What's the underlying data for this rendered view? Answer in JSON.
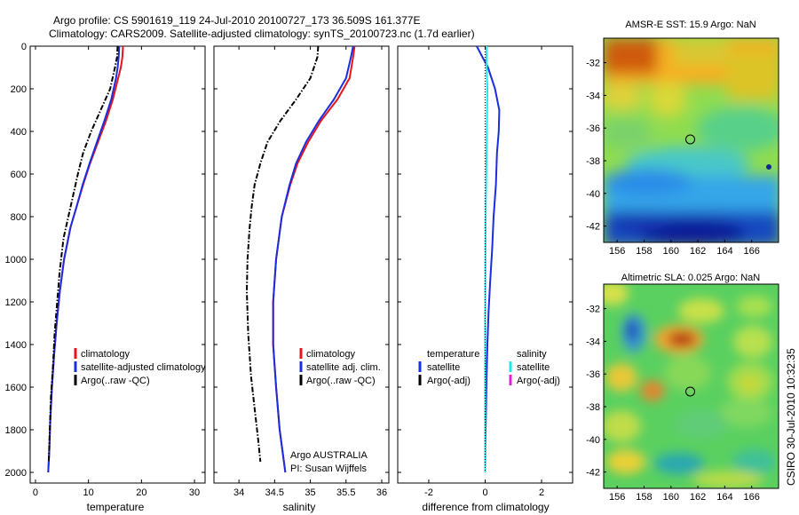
{
  "figure": {
    "title_line1": "Argo profile: CS 5901619_119 24-Jul-2010 20100727_173 36.509S 161.377E",
    "title_line2": "Climatology: CARS2009. Satellite-adjusted climatology: synTS_20100723.nc (1.7d earlier)",
    "credit": "CSIRO 30-Jul-2010 10:32:35",
    "argo_note_line1": "Argo AUSTRALIA",
    "argo_note_line2": "PI: Susan Wijffels"
  },
  "colors": {
    "climatology": "#e8141c",
    "satellite": "#1a2ee0",
    "argo": "#000000",
    "satellite_salinity": "#22e8ee",
    "argo_salinity_adj": "#e020d8"
  },
  "chart_data": [
    {
      "type": "line",
      "title": "",
      "xlabel": "temperature",
      "ylabel": "",
      "xlim": [
        -1,
        32
      ],
      "ylim": [
        2050,
        0
      ],
      "xticks": [
        0,
        10,
        20,
        30
      ],
      "yticks": [
        0,
        200,
        400,
        600,
        800,
        1000,
        1200,
        1400,
        1600,
        1800,
        2000
      ],
      "y_reversed": true,
      "legend": {
        "position": "lower-left",
        "entries": [
          "climatology",
          "satellite-adjusted climatology",
          "Argo(..raw -QC)"
        ]
      },
      "series": [
        {
          "name": "climatology",
          "style": "solid",
          "color": "#e8141c",
          "x": [
            16.5,
            16.4,
            16.1,
            15.6,
            14.6,
            13.3,
            11.8,
            10.3,
            9.0,
            7.8,
            6.6,
            5.4,
            4.6,
            4.0,
            3.5,
            3.1,
            2.8,
            2.6,
            2.4
          ],
          "y": [
            0,
            50,
            100,
            150,
            250,
            350,
            450,
            550,
            650,
            750,
            850,
            1000,
            1150,
            1300,
            1450,
            1600,
            1750,
            1900,
            2000
          ]
        },
        {
          "name": "satellite-adjusted climatology",
          "style": "solid",
          "color": "#1a2ee0",
          "x": [
            15.8,
            15.7,
            15.5,
            15.2,
            14.3,
            13.0,
            11.6,
            10.2,
            8.9,
            7.8,
            6.6,
            5.4,
            4.6,
            4.0,
            3.5,
            3.1,
            2.8,
            2.6,
            2.4
          ],
          "y": [
            0,
            50,
            100,
            150,
            250,
            350,
            450,
            550,
            650,
            750,
            850,
            1000,
            1150,
            1300,
            1450,
            1600,
            1750,
            1900,
            2000
          ]
        },
        {
          "name": "Argo(..raw -QC)",
          "style": "dashdot",
          "color": "#000000",
          "x": [
            15.5,
            15.4,
            15.0,
            14.1,
            12.3,
            10.5,
            9.0,
            8.0,
            7.1,
            6.2,
            5.3,
            4.6,
            4.1,
            3.6,
            3.3,
            2.9,
            2.7,
            2.5
          ],
          "y": [
            0,
            50,
            100,
            200,
            300,
            400,
            500,
            600,
            700,
            800,
            900,
            1050,
            1200,
            1350,
            1500,
            1650,
            1800,
            1950
          ]
        }
      ]
    },
    {
      "type": "line",
      "title": "",
      "xlabel": "salinity",
      "ylabel": "",
      "xlim": [
        33.65,
        36.1
      ],
      "ylim": [
        2050,
        0
      ],
      "xticks": [
        34,
        34.5,
        35,
        35.5,
        36
      ],
      "y_reversed": true,
      "legend": {
        "position": "lower-right",
        "entries": [
          "climatology",
          "satellite adj. clim.",
          "Argo(..raw -QC)"
        ]
      },
      "series": [
        {
          "name": "climatology",
          "style": "solid",
          "color": "#e8141c",
          "x": [
            35.62,
            35.6,
            35.55,
            35.38,
            35.15,
            34.97,
            34.82,
            34.72,
            34.6,
            34.52,
            34.48,
            34.48,
            34.52,
            34.57,
            34.61,
            34.65
          ],
          "y": [
            0,
            50,
            150,
            250,
            350,
            450,
            550,
            650,
            800,
            1000,
            1200,
            1400,
            1600,
            1800,
            1900,
            2000
          ]
        },
        {
          "name": "satellite adj. clim.",
          "style": "solid",
          "color": "#1a2ee0",
          "x": [
            35.6,
            35.57,
            35.5,
            35.33,
            35.12,
            34.94,
            34.8,
            34.71,
            34.6,
            34.52,
            34.48,
            34.48,
            34.52,
            34.57,
            34.61,
            34.65
          ],
          "y": [
            0,
            50,
            150,
            250,
            350,
            450,
            550,
            650,
            800,
            1000,
            1200,
            1400,
            1600,
            1800,
            1900,
            2000
          ]
        },
        {
          "name": "Argo(..raw -QC)",
          "style": "dashdot",
          "color": "#000000",
          "x": [
            35.11,
            35.1,
            35.0,
            34.8,
            34.58,
            34.4,
            34.3,
            34.22,
            34.18,
            34.15,
            34.12,
            34.11,
            34.13,
            34.17,
            34.22,
            34.27,
            34.3
          ],
          "y": [
            0,
            50,
            150,
            250,
            350,
            450,
            550,
            650,
            750,
            850,
            1000,
            1150,
            1350,
            1550,
            1700,
            1850,
            1950
          ]
        }
      ]
    },
    {
      "type": "line",
      "title": "",
      "xlabel": "difference from climatology",
      "ylabel": "",
      "xlim": [
        -3.1,
        3.1
      ],
      "ylim": [
        2050,
        0
      ],
      "xticks": [
        -2,
        0,
        2
      ],
      "y_reversed": true,
      "legend": {
        "position": "lower-center",
        "groups": [
          {
            "header": "temperature",
            "entries": [
              "satellite",
              "Argo(-adj)"
            ]
          },
          {
            "header": "salinity",
            "entries": [
              "satellite",
              "Argo(-adj)"
            ]
          }
        ]
      },
      "series": [
        {
          "name": "temperature satellite",
          "style": "solid",
          "color": "#1a2ee0",
          "x": [
            -0.3,
            -0.1,
            0.1,
            0.35,
            0.5,
            0.48,
            0.42,
            0.38,
            0.3,
            0.25,
            0.18,
            0.12,
            0.08,
            0.05,
            0.03,
            0.01,
            0.0
          ],
          "y": [
            0,
            50,
            100,
            200,
            300,
            400,
            500,
            650,
            800,
            950,
            1100,
            1250,
            1400,
            1550,
            1700,
            1850,
            2000
          ]
        },
        {
          "name": "salinity satellite",
          "style": "solid",
          "color": "#22e8ee",
          "x": [
            0.05,
            0.05,
            0.08,
            0.06,
            0.04,
            0.02,
            0.01,
            0.0,
            0.0,
            0.0
          ],
          "y": [
            0,
            100,
            200,
            400,
            600,
            800,
            1000,
            1300,
            1600,
            2000
          ]
        },
        {
          "name": "Argo(-adj)",
          "style": "dotted",
          "color": "#000000",
          "x": [
            0.0,
            0.0
          ],
          "y": [
            0,
            2000
          ]
        }
      ]
    },
    {
      "type": "heatmap",
      "title": "AMSR-E SST: 15.9 Argo: NaN",
      "xlim": [
        155,
        168
      ],
      "ylim": [
        -43,
        -30.5
      ],
      "xticks": [
        156,
        158,
        160,
        162,
        164,
        166
      ],
      "yticks": [
        -32,
        -34,
        -36,
        -38,
        -40,
        -42
      ],
      "marker": {
        "lon": 161.4,
        "lat": -36.5
      }
    },
    {
      "type": "heatmap",
      "title": "Altimetric SLA: 0.025 Argo: NaN",
      "xlim": [
        155,
        168
      ],
      "ylim": [
        -43,
        -30.5
      ],
      "xticks": [
        156,
        158,
        160,
        162,
        164,
        166
      ],
      "yticks": [
        -32,
        -34,
        -36,
        -38,
        -40,
        -42
      ],
      "marker": {
        "lon": 161.4,
        "lat": -36.5
      }
    }
  ]
}
